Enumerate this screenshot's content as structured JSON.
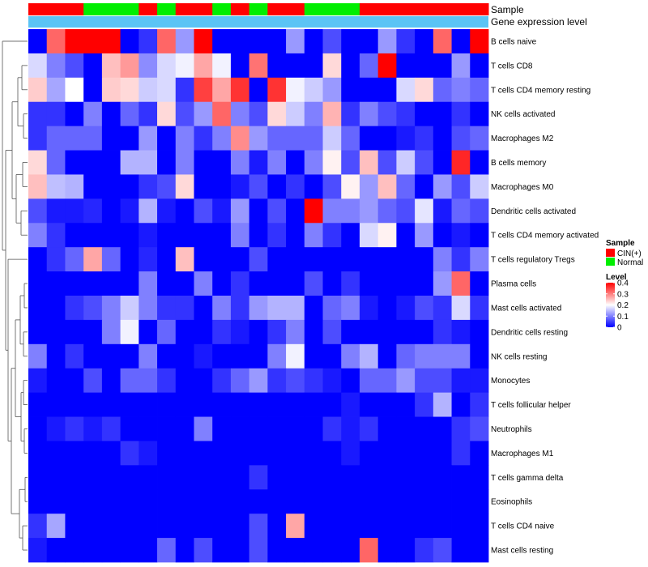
{
  "chart_data": {
    "type": "heatmap",
    "annotations": {
      "sample_track_label": "Sample",
      "expression_track_label": "Gene expression level"
    },
    "sample_groups": [
      "CIN(+)",
      "CIN(+)",
      "CIN(+)",
      "Normal",
      "Normal",
      "Normal",
      "CIN(+)",
      "Normal",
      "CIN(+)",
      "CIN(+)",
      "Normal",
      "CIN(+)",
      "Normal",
      "CIN(+)",
      "CIN(+)",
      "Normal",
      "Normal",
      "Normal",
      "CIN(+)",
      "CIN(+)",
      "CIN(+)",
      "CIN(+)",
      "CIN(+)",
      "CIN(+)",
      "CIN(+)"
    ],
    "rows": [
      "B cells naive",
      "T cells CD8",
      "T cells CD4 memory resting",
      "NK cells activated",
      "Macrophages M2",
      "B cells memory",
      "Macrophages M0",
      "Dendritic cells activated",
      "T cells CD4 memory activated",
      "T cells regulatory  Tregs",
      "Plasma cells",
      "Mast cells activated",
      "Dendritic cells resting",
      "NK cells resting",
      "Monocytes",
      "T cells follicular helper",
      "Neutrophils",
      "Macrophages M1",
      "T cells gamma delta",
      "Eosinophils",
      "T cells CD4 naive",
      "Mast cells resting"
    ],
    "values": [
      [
        0.0,
        0.32,
        0.4,
        0.4,
        0.4,
        0.0,
        0.04,
        0.32,
        0.12,
        0.4,
        0.0,
        0.0,
        0.0,
        0.0,
        0.12,
        0.0,
        0.06,
        0.0,
        0.0,
        0.12,
        0.04,
        0.0,
        0.32,
        0.0,
        0.4
      ],
      [
        0.17,
        0.1,
        0.06,
        0.0,
        0.25,
        0.28,
        0.11,
        0.17,
        0.19,
        0.27,
        0.19,
        0.0,
        0.31,
        0.0,
        0.0,
        0.0,
        0.23,
        0.0,
        0.08,
        0.4,
        0.0,
        0.0,
        0.0,
        0.12,
        0.0
      ],
      [
        0.24,
        0.13,
        0.2,
        0.0,
        0.24,
        0.23,
        0.16,
        0.17,
        0.04,
        0.35,
        0.27,
        0.36,
        0.0,
        0.36,
        0.19,
        0.16,
        0.12,
        0.0,
        0.0,
        0.0,
        0.17,
        0.23,
        0.08,
        0.1,
        0.08
      ],
      [
        0.04,
        0.04,
        0.0,
        0.1,
        0.0,
        0.08,
        0.04,
        0.23,
        0.06,
        0.12,
        0.32,
        0.1,
        0.06,
        0.23,
        0.16,
        0.1,
        0.26,
        0.04,
        0.1,
        0.06,
        0.04,
        0.0,
        0.0,
        0.04,
        0.0
      ],
      [
        0.04,
        0.08,
        0.08,
        0.08,
        0.0,
        0.0,
        0.12,
        0.0,
        0.1,
        0.04,
        0.1,
        0.29,
        0.12,
        0.08,
        0.08,
        0.08,
        0.16,
        0.08,
        0.0,
        0.0,
        0.02,
        0.04,
        0.0,
        0.06,
        0.08
      ],
      [
        0.23,
        0.08,
        0.0,
        0.0,
        0.0,
        0.14,
        0.14,
        0.0,
        0.1,
        0.0,
        0.0,
        0.1,
        0.02,
        0.1,
        0.0,
        0.1,
        0.21,
        0.06,
        0.25,
        0.06,
        0.16,
        0.06,
        0.0,
        0.37,
        0.0
      ],
      [
        0.25,
        0.15,
        0.14,
        0.0,
        0.0,
        0.0,
        0.04,
        0.06,
        0.23,
        0.0,
        0.0,
        0.02,
        0.06,
        0.0,
        0.04,
        0.0,
        0.06,
        0.21,
        0.12,
        0.25,
        0.08,
        0.0,
        0.12,
        0.06,
        0.16
      ],
      [
        0.06,
        0.02,
        0.02,
        0.03,
        0.0,
        0.02,
        0.14,
        0.02,
        0.0,
        0.06,
        0.02,
        0.12,
        0.0,
        0.06,
        0.0,
        0.4,
        0.1,
        0.1,
        0.12,
        0.08,
        0.06,
        0.18,
        0.02,
        0.08,
        0.06
      ],
      [
        0.1,
        0.04,
        0.0,
        0.0,
        0.0,
        0.0,
        0.02,
        0.0,
        0.0,
        0.0,
        0.0,
        0.1,
        0.0,
        0.04,
        0.0,
        0.1,
        0.04,
        0.0,
        0.17,
        0.21,
        0.0,
        0.12,
        0.0,
        0.02,
        0.0
      ],
      [
        0.0,
        0.04,
        0.08,
        0.27,
        0.08,
        0.0,
        0.03,
        0.0,
        0.25,
        0.0,
        0.0,
        0.0,
        0.06,
        0.0,
        0.0,
        0.0,
        0.0,
        0.0,
        0.0,
        0.0,
        0.0,
        0.0,
        0.1,
        0.04,
        0.1
      ],
      [
        0.0,
        0.0,
        0.0,
        0.0,
        0.0,
        0.0,
        0.1,
        0.0,
        0.0,
        0.1,
        0.0,
        0.04,
        0.0,
        0.0,
        0.0,
        0.06,
        0.0,
        0.04,
        0.0,
        0.0,
        0.0,
        0.0,
        0.12,
        0.32,
        0.0
      ],
      [
        0.0,
        0.0,
        0.04,
        0.06,
        0.1,
        0.16,
        0.1,
        0.04,
        0.04,
        0.0,
        0.1,
        0.04,
        0.12,
        0.14,
        0.14,
        0.0,
        0.08,
        0.1,
        0.02,
        0.0,
        0.02,
        0.06,
        0.04,
        0.17,
        0.04
      ],
      [
        0.0,
        0.0,
        0.0,
        0.0,
        0.1,
        0.19,
        0.0,
        0.08,
        0.0,
        0.0,
        0.04,
        0.02,
        0.0,
        0.04,
        0.1,
        0.0,
        0.06,
        0.0,
        0.0,
        0.0,
        0.0,
        0.0,
        0.04,
        0.02,
        0.0
      ],
      [
        0.1,
        0.0,
        0.04,
        0.0,
        0.0,
        0.0,
        0.1,
        0.0,
        0.0,
        0.02,
        0.0,
        0.0,
        0.0,
        0.1,
        0.19,
        0.0,
        0.0,
        0.1,
        0.14,
        0.0,
        0.08,
        0.1,
        0.1,
        0.1,
        0.0
      ],
      [
        0.02,
        0.0,
        0.0,
        0.06,
        0.0,
        0.08,
        0.08,
        0.04,
        0.0,
        0.0,
        0.04,
        0.08,
        0.12,
        0.04,
        0.06,
        0.04,
        0.02,
        0.0,
        0.08,
        0.08,
        0.12,
        0.06,
        0.06,
        0.02,
        0.02
      ],
      [
        0.0,
        0.0,
        0.0,
        0.0,
        0.0,
        0.0,
        0.0,
        0.0,
        0.0,
        0.0,
        0.0,
        0.0,
        0.0,
        0.0,
        0.0,
        0.0,
        0.0,
        0.02,
        0.0,
        0.0,
        0.0,
        0.04,
        0.14,
        0.0,
        0.04
      ],
      [
        0.0,
        0.02,
        0.04,
        0.02,
        0.04,
        0.0,
        0.0,
        0.0,
        0.0,
        0.1,
        0.0,
        0.0,
        0.0,
        0.0,
        0.0,
        0.0,
        0.04,
        0.02,
        0.04,
        0.0,
        0.0,
        0.0,
        0.0,
        0.04,
        0.06
      ],
      [
        0.0,
        0.0,
        0.0,
        0.0,
        0.0,
        0.04,
        0.02,
        0.0,
        0.0,
        0.0,
        0.0,
        0.0,
        0.0,
        0.0,
        0.0,
        0.0,
        0.0,
        0.02,
        0.0,
        0.0,
        0.0,
        0.0,
        0.0,
        0.04,
        0.0
      ],
      [
        0.0,
        0.0,
        0.0,
        0.0,
        0.0,
        0.0,
        0.0,
        0.0,
        0.0,
        0.0,
        0.0,
        0.0,
        0.04,
        0.0,
        0.0,
        0.0,
        0.0,
        0.0,
        0.0,
        0.0,
        0.0,
        0.0,
        0.0,
        0.0,
        0.0
      ],
      [
        0.0,
        0.0,
        0.0,
        0.0,
        0.0,
        0.0,
        0.0,
        0.0,
        0.0,
        0.0,
        0.0,
        0.0,
        0.0,
        0.0,
        0.0,
        0.0,
        0.0,
        0.0,
        0.0,
        0.0,
        0.0,
        0.0,
        0.0,
        0.0,
        0.0
      ],
      [
        0.04,
        0.13,
        0.0,
        0.0,
        0.0,
        0.0,
        0.0,
        0.0,
        0.0,
        0.0,
        0.0,
        0.0,
        0.06,
        0.0,
        0.27,
        0.0,
        0.0,
        0.0,
        0.0,
        0.0,
        0.0,
        0.0,
        0.0,
        0.0,
        0.0
      ],
      [
        0.02,
        0.0,
        0.0,
        0.0,
        0.0,
        0.0,
        0.0,
        0.08,
        0.0,
        0.06,
        0.0,
        0.0,
        0.06,
        0.0,
        0.0,
        0.0,
        0.0,
        0.0,
        0.32,
        0.0,
        0.0,
        0.04,
        0.06,
        0.0,
        0.0
      ]
    ],
    "legend": {
      "sample_title": "Sample",
      "sample_entries": [
        {
          "label": "CIN(+)",
          "color": "#ff0000"
        },
        {
          "label": "Normal",
          "color": "#00ee00"
        }
      ],
      "level_title": "Level",
      "level_ticks": [
        0.4,
        0.3,
        0.2,
        0.1,
        0
      ]
    },
    "color_scale": {
      "min": 0,
      "max": 0.4,
      "low": "#0000ff",
      "mid": "#ffffff",
      "high": "#ff0000",
      "expression_color": "#5bc4f5"
    }
  }
}
